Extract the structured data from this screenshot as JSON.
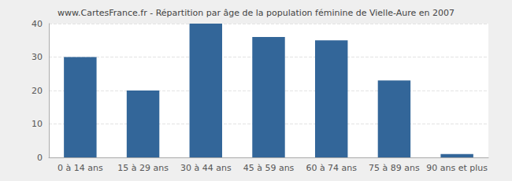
{
  "chart_data": {
    "type": "bar",
    "title": "www.CartesFrance.fr - Répartition par âge de la population féminine de Vielle-Aure en 2007",
    "categories": [
      "0 à 14 ans",
      "15 à 29 ans",
      "30 à 44 ans",
      "45 à 59 ans",
      "60 à 74 ans",
      "75 à 89 ans",
      "90 ans et plus"
    ],
    "values": [
      30,
      20,
      40,
      36,
      35,
      23,
      1
    ],
    "color": "#336699",
    "ylim": [
      0,
      40
    ],
    "yticks": [
      0,
      10,
      20,
      30,
      40
    ],
    "grid": true
  }
}
